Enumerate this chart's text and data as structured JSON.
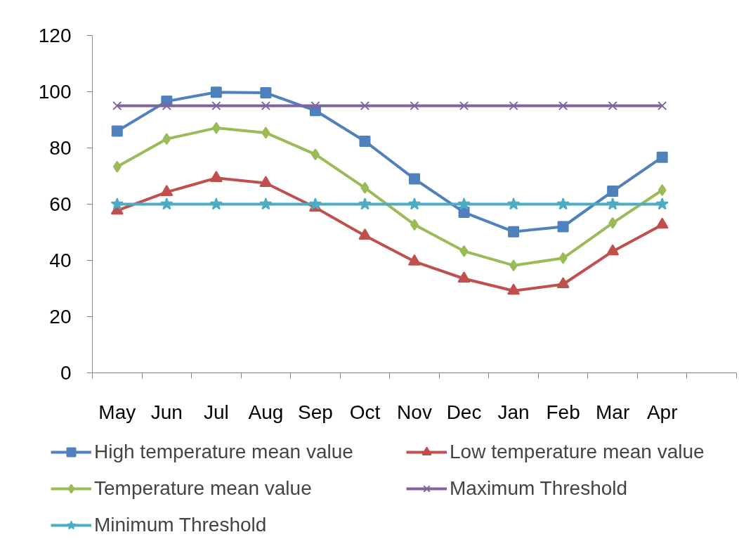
{
  "chart_data": {
    "type": "line",
    "categories": [
      "May",
      "Jun",
      "Jul",
      "Aug",
      "Sep",
      "Oct",
      "Nov",
      "Dec",
      "Jan",
      "Feb",
      "Mar",
      "Apr",
      null
    ],
    "ylim": [
      0,
      120
    ],
    "yticks": [
      0,
      20,
      40,
      60,
      80,
      100,
      120
    ],
    "grid": false,
    "legend": "bottom",
    "line_style": "solid",
    "series": [
      {
        "name": "High temperature mean value",
        "color": "#4f81bd",
        "marker": "square",
        "values": [
          86,
          96.6,
          99.8,
          99.6,
          93.3,
          82.4,
          69,
          57.1,
          50.2,
          52,
          64.6,
          76.7,
          null
        ]
      },
      {
        "name": "Low temperature mean value",
        "color": "#c0504d",
        "marker": "triangle",
        "values": [
          57.7,
          64.3,
          69.3,
          67.5,
          58.8,
          48.8,
          39.6,
          33.5,
          29.2,
          31.5,
          43.2,
          52.7,
          null
        ]
      },
      {
        "name": "Temperature mean value",
        "color": "#9bbb59",
        "marker": "diamond",
        "values": [
          73.3,
          83.2,
          87.1,
          85.4,
          77.7,
          65.8,
          52.7,
          43.3,
          38.2,
          40.8,
          53.3,
          65,
          null
        ]
      },
      {
        "name": "Maximum Threshold",
        "color": "#8064a2",
        "marker": "cross",
        "values": [
          95,
          95,
          95,
          95,
          95,
          95,
          95,
          95,
          95,
          95,
          95,
          95,
          null
        ]
      },
      {
        "name": "Minimum Threshold",
        "color": "#4bacc6",
        "marker": "star",
        "values": [
          60,
          60,
          60,
          60,
          60,
          60,
          60,
          60,
          60,
          60,
          60,
          60,
          null
        ]
      }
    ]
  }
}
